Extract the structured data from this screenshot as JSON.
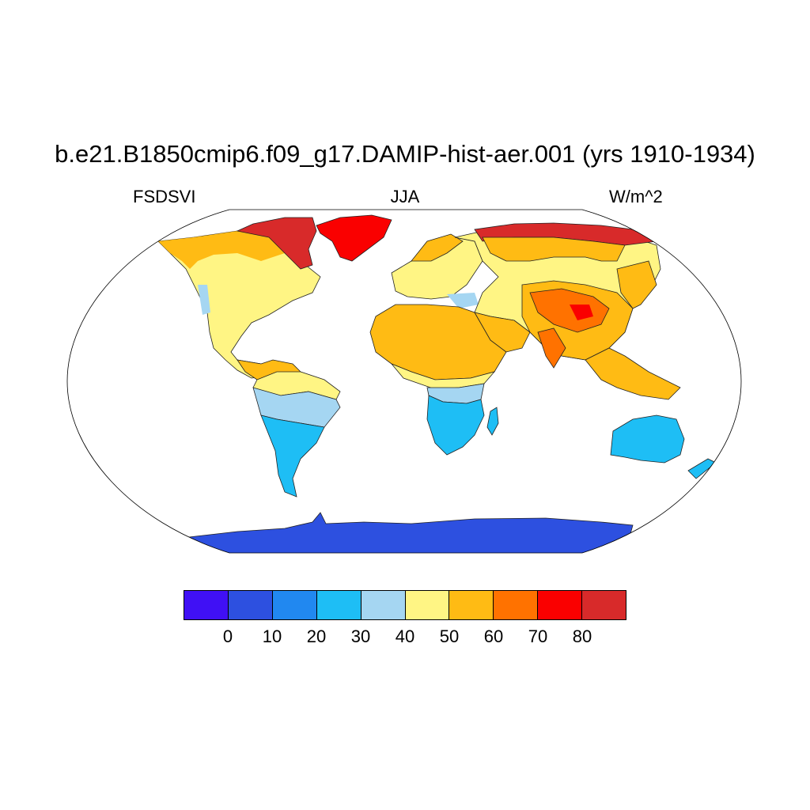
{
  "title": "b.e21.B1850cmip6.f09_g17.DAMIP-hist-aer.001 (yrs 1910-1934)",
  "left_label": "FSDSVI",
  "center_label": "JJA",
  "right_label": "W/m^2",
  "colorbar": {
    "colors": [
      "#4010f5",
      "#2d50e0",
      "#2188f0",
      "#1ebef5",
      "#a5d6f2",
      "#fff584",
      "#ffbb14",
      "#ff7200",
      "#fa0000",
      "#d82a2a"
    ],
    "labels": [
      "0",
      "10",
      "20",
      "30",
      "40",
      "50",
      "60",
      "70",
      "80"
    ]
  },
  "map": {
    "projection": "Robinson",
    "regions": [
      {
        "name": "Antarctica",
        "color": "#2d50e0"
      },
      {
        "name": "Australia",
        "color": "#1ebef5"
      },
      {
        "name": "South America south",
        "color": "#1ebef5"
      },
      {
        "name": "Southern Africa",
        "color": "#1ebef5"
      },
      {
        "name": "Central Africa band",
        "color": "#a5d6f2"
      },
      {
        "name": "Sahara",
        "color": "#ffbb14"
      },
      {
        "name": "Europe",
        "color": "#fff584"
      },
      {
        "name": "North America",
        "color": "#fff584"
      },
      {
        "name": "Canadian Arctic",
        "color": "#d82a2a"
      },
      {
        "name": "Greenland",
        "color": "#fa0000"
      },
      {
        "name": "Siberia",
        "color": "#d82a2a"
      },
      {
        "name": "Tibetan Plateau",
        "color": "#ff7200"
      },
      {
        "name": "Southeast Asia",
        "color": "#ffbb14"
      }
    ]
  }
}
